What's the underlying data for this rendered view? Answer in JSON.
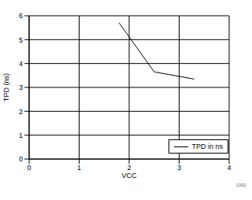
{
  "chart_data": {
    "type": "line",
    "x_label": "VCC",
    "y_label": "TPD (ns)",
    "series": [
      {
        "name": "TPD in ns",
        "color": "#000000",
        "x": [
          1.8,
          2.5,
          3.3
        ],
        "values": [
          5.7,
          3.65,
          3.35
        ]
      }
    ],
    "xlim": [
      0,
      4
    ],
    "xticks": [
      0,
      1,
      2,
      3,
      4
    ],
    "ylim": [
      0,
      6
    ],
    "yticks": [
      0,
      1,
      2,
      3,
      4,
      5,
      6
    ],
    "grid": true,
    "legend": "lower right",
    "annotations": [
      "C002"
    ]
  }
}
